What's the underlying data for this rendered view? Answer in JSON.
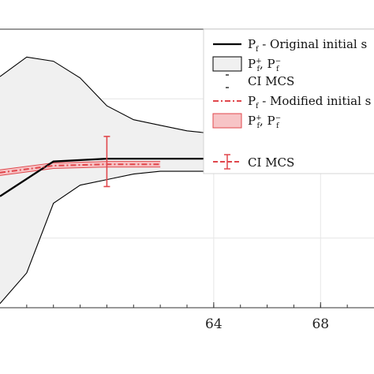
{
  "chart_data": {
    "type": "line",
    "title": "",
    "xlabel": "",
    "ylabel": "",
    "xlim": [
      56,
      70
    ],
    "ylim": [
      -1,
      1
    ],
    "grid": true,
    "legend_placement": "top-right",
    "x_ticks": [
      {
        "value": 64,
        "label": "64"
      },
      {
        "value": 68,
        "label": "68"
      }
    ],
    "series": [
      {
        "name": "P_f - Original initial s",
        "role": "line",
        "color": "#000000",
        "x": [
          56,
          58,
          60,
          62,
          64,
          66,
          68,
          70
        ],
        "y": [
          -0.2,
          0.05,
          0.07,
          0.07,
          0.07,
          0.07,
          0.07,
          0.07
        ]
      },
      {
        "name": "P_f+, P_f-",
        "role": "band",
        "color": "#f0f0f0",
        "x": [
          56,
          57,
          58,
          59,
          60,
          61,
          62,
          63,
          64,
          65,
          66,
          67,
          68,
          69,
          70
        ],
        "upper": [
          0.66,
          0.8,
          0.77,
          0.65,
          0.45,
          0.35,
          0.31,
          0.27,
          0.25,
          0.22,
          0.2,
          0.18,
          0.14,
          0.12,
          0.11
        ],
        "lower": [
          -0.97,
          -0.75,
          -0.25,
          -0.12,
          -0.08,
          -0.04,
          -0.02,
          -0.02,
          -0.02,
          -0.01,
          -0.01,
          0.0,
          0.02,
          0.04,
          0.05
        ]
      },
      {
        "name": "CI MCS",
        "role": "errorbar",
        "color": "#000000",
        "x": [],
        "y": [],
        "err": []
      },
      {
        "name": "P_f - Modified initial s",
        "role": "line",
        "color": "#e0474c",
        "x": [
          56,
          58,
          60,
          62
        ],
        "y": [
          -0.03,
          0.02,
          0.03,
          0.03
        ]
      },
      {
        "name": "P_f+, P_f-",
        "role": "band",
        "color": "#f7c4c6",
        "x": [
          56,
          58,
          60,
          62
        ],
        "upper": [
          -0.01,
          0.04,
          0.05,
          0.05
        ],
        "lower": [
          -0.05,
          0.0,
          0.01,
          0.01
        ]
      },
      {
        "name": "CI MCS",
        "role": "errorbar",
        "color": "#e0474c",
        "x": [
          60
        ],
        "y": [
          0.05
        ],
        "err": [
          0.18
        ]
      }
    ],
    "legend": [
      {
        "main": "P",
        "sub": "f",
        "rest": " - Original initial s"
      },
      {
        "main": "P",
        "sup1": "+",
        "sub1": "f",
        "mid": ", P",
        "sup2": "−",
        "sub2": "f"
      },
      {
        "text": "CI MCS"
      },
      {
        "main": "P",
        "sub": "f",
        "rest": " - Modified initial s"
      },
      {
        "main": "P",
        "sup1": "+",
        "sub1": "f",
        "mid": ", P",
        "sup2": "−",
        "sub2": "f"
      },
      {
        "text": "CI MCS"
      }
    ]
  }
}
